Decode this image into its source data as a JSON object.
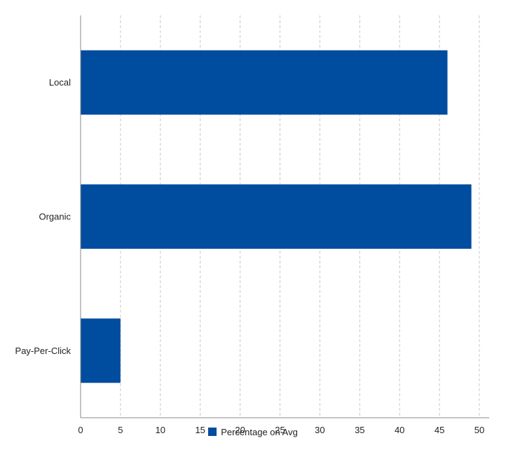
{
  "chart_data": {
    "type": "bar",
    "orientation": "horizontal",
    "categories": [
      "Local",
      "Organic",
      "Pay-Per-Click"
    ],
    "series": [
      {
        "name": "Percentage on Avg",
        "values": [
          46,
          49,
          5
        ],
        "color": "#004c9f"
      }
    ],
    "xlim": [
      0,
      50
    ],
    "xticks": [
      0,
      5,
      10,
      15,
      20,
      25,
      30,
      35,
      40,
      45,
      50
    ],
    "grid": true,
    "grid_style": "dashed",
    "legend_position": "bottom-center",
    "title": "",
    "xlabel": "",
    "ylabel": ""
  }
}
